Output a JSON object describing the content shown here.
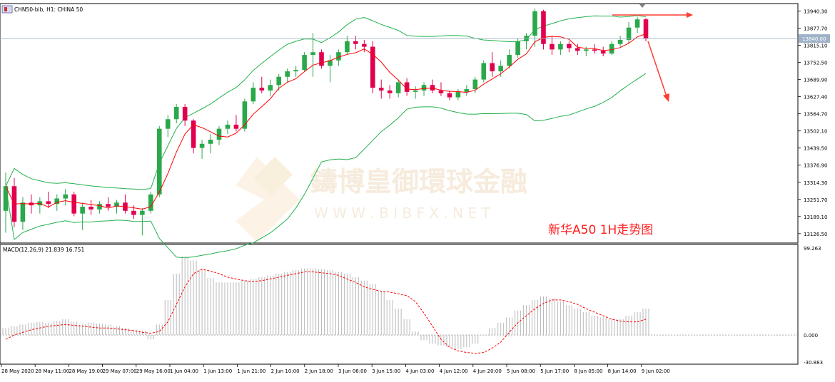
{
  "header": {
    "symbol_label": "CHN50-bib, H1: CHINA 50",
    "macd_label": "MACD(12,26,9) 21.839 16.751"
  },
  "watermark": {
    "name": "鑄博皇御環球金融",
    "url": "W W W . B I B F X . N E T"
  },
  "annotation": {
    "text": "新华A50 1H走势图"
  },
  "colors": {
    "bull": "#26a69a",
    "bear": "#e0004e",
    "candle_up": "#2aa84a",
    "ma": "#ff0000",
    "bands": "#22b14c",
    "arrow": "#ff3b30",
    "macd_hist": "#b9b9b9",
    "macd_signal": "#ff0000",
    "current_line": "#9fb3c8"
  },
  "price_axis": {
    "ticks": [
      "13940.30",
      "13877.70",
      "13815.10",
      "13752.50",
      "13689.90",
      "13627.40",
      "13564.70",
      "13502.10",
      "13439.50",
      "13376.90",
      "13314.30",
      "13251.70",
      "13189.10",
      "13126.50"
    ],
    "current_price": "13840.00"
  },
  "macd_axis": {
    "ticks": [
      "99.263",
      "0.000",
      "-30.883"
    ]
  },
  "time_axis": {
    "labels": [
      "28 May 2020",
      "28 May 11:00",
      "28 May 19:00",
      "29 May 07:00",
      "29 May 16:00",
      "1 Jun 04:00",
      "1 Jun 13:00",
      "1 Jun 21:00",
      "2 Jun 10:00",
      "2 Jun 18:00",
      "3 Jun 06:00",
      "3 Jun 15:00",
      "4 Jun 03:00",
      "4 Jun 12:00",
      "4 Jun 20:00",
      "5 Jun 08:00",
      "5 Jun 17:00",
      "8 Jun 05:00",
      "8 Jun 14:00",
      "9 Jun 02:00"
    ]
  },
  "chart_data": {
    "type": "candlestick",
    "title": "CHN50-bib, H1: CHINA 50",
    "ylim": [
      13100,
      13960
    ],
    "current_price": 13840.0,
    "candles": [
      {
        "t": "28 May 2020",
        "o": 13210,
        "h": 13350,
        "l": 13130,
        "c": 13300
      },
      {
        "t": "",
        "o": 13300,
        "h": 13330,
        "l": 13150,
        "c": 13170
      },
      {
        "t": "",
        "o": 13170,
        "h": 13260,
        "l": 13140,
        "c": 13240
      },
      {
        "t": "",
        "o": 13240,
        "h": 13270,
        "l": 13200,
        "c": 13230
      },
      {
        "t": "28 May 11:00",
        "o": 13230,
        "h": 13260,
        "l": 13200,
        "c": 13245
      },
      {
        "t": "",
        "o": 13245,
        "h": 13280,
        "l": 13220,
        "c": 13235
      },
      {
        "t": "",
        "o": 13235,
        "h": 13270,
        "l": 13210,
        "c": 13255
      },
      {
        "t": "",
        "o": 13255,
        "h": 13290,
        "l": 13230,
        "c": 13270
      },
      {
        "t": "28 May 19:00",
        "o": 13270,
        "h": 13280,
        "l": 13190,
        "c": 13200
      },
      {
        "t": "",
        "o": 13200,
        "h": 13240,
        "l": 13140,
        "c": 13225
      },
      {
        "t": "",
        "o": 13225,
        "h": 13250,
        "l": 13195,
        "c": 13215
      },
      {
        "t": "",
        "o": 13215,
        "h": 13245,
        "l": 13200,
        "c": 13235
      },
      {
        "t": "29 May 07:00",
        "o": 13235,
        "h": 13260,
        "l": 13210,
        "c": 13225
      },
      {
        "t": "",
        "o": 13225,
        "h": 13250,
        "l": 13200,
        "c": 13240
      },
      {
        "t": "",
        "o": 13240,
        "h": 13270,
        "l": 13200,
        "c": 13210
      },
      {
        "t": "",
        "o": 13210,
        "h": 13230,
        "l": 13180,
        "c": 13195
      },
      {
        "t": "29 May 16:00",
        "o": 13195,
        "h": 13220,
        "l": 13120,
        "c": 13210
      },
      {
        "t": "",
        "o": 13210,
        "h": 13280,
        "l": 13200,
        "c": 13270
      },
      {
        "t": "",
        "o": 13270,
        "h": 13520,
        "l": 13260,
        "c": 13510
      },
      {
        "t": "",
        "o": 13510,
        "h": 13560,
        "l": 13480,
        "c": 13545
      },
      {
        "t": "1 Jun 04:00",
        "o": 13545,
        "h": 13600,
        "l": 13530,
        "c": 13590
      },
      {
        "t": "",
        "o": 13590,
        "h": 13600,
        "l": 13520,
        "c": 13540
      },
      {
        "t": "",
        "o": 13540,
        "h": 13545,
        "l": 13420,
        "c": 13440
      },
      {
        "t": "",
        "o": 13440,
        "h": 13470,
        "l": 13400,
        "c": 13455
      },
      {
        "t": "1 Jun 13:00",
        "o": 13455,
        "h": 13490,
        "l": 13420,
        "c": 13470
      },
      {
        "t": "",
        "o": 13470,
        "h": 13520,
        "l": 13450,
        "c": 13510
      },
      {
        "t": "",
        "o": 13510,
        "h": 13540,
        "l": 13490,
        "c": 13525
      },
      {
        "t": "",
        "o": 13525,
        "h": 13560,
        "l": 13500,
        "c": 13510
      },
      {
        "t": "1 Jun 21:00",
        "o": 13510,
        "h": 13620,
        "l": 13500,
        "c": 13610
      },
      {
        "t": "",
        "o": 13610,
        "h": 13680,
        "l": 13600,
        "c": 13660
      },
      {
        "t": "",
        "o": 13660,
        "h": 13700,
        "l": 13640,
        "c": 13650
      },
      {
        "t": "",
        "o": 13650,
        "h": 13690,
        "l": 13630,
        "c": 13670
      },
      {
        "t": "2 Jun 10:00",
        "o": 13670,
        "h": 13710,
        "l": 13650,
        "c": 13700
      },
      {
        "t": "",
        "o": 13700,
        "h": 13730,
        "l": 13680,
        "c": 13720
      },
      {
        "t": "",
        "o": 13720,
        "h": 13740,
        "l": 13700,
        "c": 13725
      },
      {
        "t": "",
        "o": 13725,
        "h": 13790,
        "l": 13720,
        "c": 13780
      },
      {
        "t": "2 Jun 18:00",
        "o": 13780,
        "h": 13860,
        "l": 13700,
        "c": 13790
      },
      {
        "t": "",
        "o": 13790,
        "h": 13800,
        "l": 13730,
        "c": 13740
      },
      {
        "t": "",
        "o": 13740,
        "h": 13780,
        "l": 13680,
        "c": 13760
      },
      {
        "t": "",
        "o": 13760,
        "h": 13800,
        "l": 13740,
        "c": 13790
      },
      {
        "t": "3 Jun 06:00",
        "o": 13790,
        "h": 13850,
        "l": 13780,
        "c": 13830
      },
      {
        "t": "",
        "o": 13830,
        "h": 13850,
        "l": 13800,
        "c": 13820
      },
      {
        "t": "",
        "o": 13820,
        "h": 13835,
        "l": 13790,
        "c": 13810
      },
      {
        "t": "",
        "o": 13810,
        "h": 13830,
        "l": 13640,
        "c": 13660
      },
      {
        "t": "3 Jun 15:00",
        "o": 13660,
        "h": 13690,
        "l": 13620,
        "c": 13650
      },
      {
        "t": "",
        "o": 13650,
        "h": 13670,
        "l": 13620,
        "c": 13640
      },
      {
        "t": "",
        "o": 13640,
        "h": 13690,
        "l": 13625,
        "c": 13680
      },
      {
        "t": "",
        "o": 13680,
        "h": 13695,
        "l": 13630,
        "c": 13645
      },
      {
        "t": "4 Jun 03:00",
        "o": 13645,
        "h": 13665,
        "l": 13620,
        "c": 13650
      },
      {
        "t": "",
        "o": 13650,
        "h": 13680,
        "l": 13630,
        "c": 13670
      },
      {
        "t": "",
        "o": 13670,
        "h": 13690,
        "l": 13640,
        "c": 13650
      },
      {
        "t": "",
        "o": 13650,
        "h": 13680,
        "l": 13630,
        "c": 13640
      },
      {
        "t": "4 Jun 12:00",
        "o": 13640,
        "h": 13650,
        "l": 13615,
        "c": 13625
      },
      {
        "t": "",
        "o": 13625,
        "h": 13655,
        "l": 13615,
        "c": 13645
      },
      {
        "t": "",
        "o": 13645,
        "h": 13670,
        "l": 13630,
        "c": 13655
      },
      {
        "t": "",
        "o": 13655,
        "h": 13700,
        "l": 13640,
        "c": 13690
      },
      {
        "t": "4 Jun 20:00",
        "o": 13690,
        "h": 13760,
        "l": 13680,
        "c": 13750
      },
      {
        "t": "",
        "o": 13750,
        "h": 13790,
        "l": 13700,
        "c": 13720
      },
      {
        "t": "",
        "o": 13720,
        "h": 13760,
        "l": 13700,
        "c": 13740
      },
      {
        "t": "",
        "o": 13740,
        "h": 13800,
        "l": 13730,
        "c": 13780
      },
      {
        "t": "5 Jun 08:00",
        "o": 13780,
        "h": 13840,
        "l": 13770,
        "c": 13830
      },
      {
        "t": "",
        "o": 13830,
        "h": 13860,
        "l": 13800,
        "c": 13850
      },
      {
        "t": "",
        "o": 13850,
        "h": 13950,
        "l": 13810,
        "c": 13940
      },
      {
        "t": "",
        "o": 13940,
        "h": 13945,
        "l": 13800,
        "c": 13820
      },
      {
        "t": "5 Jun 17:00",
        "o": 13820,
        "h": 13850,
        "l": 13780,
        "c": 13800
      },
      {
        "t": "",
        "o": 13800,
        "h": 13830,
        "l": 13780,
        "c": 13820
      },
      {
        "t": "",
        "o": 13820,
        "h": 13830,
        "l": 13790,
        "c": 13805
      },
      {
        "t": "",
        "o": 13805,
        "h": 13820,
        "l": 13780,
        "c": 13795
      },
      {
        "t": "8 Jun 05:00",
        "o": 13795,
        "h": 13810,
        "l": 13775,
        "c": 13800
      },
      {
        "t": "",
        "o": 13800,
        "h": 13820,
        "l": 13785,
        "c": 13795
      },
      {
        "t": "",
        "o": 13795,
        "h": 13810,
        "l": 13775,
        "c": 13785
      },
      {
        "t": "",
        "o": 13785,
        "h": 13830,
        "l": 13780,
        "c": 13820
      },
      {
        "t": "8 Jun 14:00",
        "o": 13820,
        "h": 13850,
        "l": 13810,
        "c": 13835
      },
      {
        "t": "",
        "o": 13835,
        "h": 13900,
        "l": 13820,
        "c": 13880
      },
      {
        "t": "",
        "o": 13880,
        "h": 13920,
        "l": 13860,
        "c": 13910
      },
      {
        "t": "9 Jun 02:00",
        "o": 13910,
        "h": 13915,
        "l": 13830,
        "c": 13840
      }
    ],
    "macd": {
      "ylim": [
        -30.883,
        99.263
      ],
      "histogram": [
        8,
        10,
        12,
        14,
        15,
        14,
        16,
        18,
        15,
        12,
        14,
        13,
        12,
        10,
        8,
        6,
        5,
        -5,
        12,
        40,
        70,
        90,
        85,
        75,
        65,
        60,
        60,
        60,
        62,
        64,
        66,
        68,
        70,
        72,
        74,
        76,
        76,
        75,
        74,
        72,
        70,
        66,
        62,
        58,
        50,
        40,
        30,
        18,
        4,
        -6,
        -10,
        -12,
        -14,
        -16,
        -14,
        -10,
        0,
        8,
        14,
        20,
        28,
        34,
        40,
        44,
        42,
        38,
        34,
        30,
        26,
        22,
        20,
        18,
        18,
        22,
        26,
        30
      ],
      "signal": [
        -5,
        0,
        3,
        6,
        8,
        10,
        11,
        12,
        11,
        10,
        9,
        8,
        8,
        7,
        6,
        5,
        3,
        2,
        4,
        15,
        35,
        55,
        70,
        75,
        73,
        70,
        66,
        64,
        62,
        61,
        62,
        64,
        66,
        68,
        70,
        72,
        72,
        71,
        70,
        68,
        64,
        60,
        55,
        52,
        50,
        49,
        47,
        45,
        38,
        25,
        10,
        -5,
        -14,
        -18,
        -20,
        -21,
        -20,
        -15,
        -8,
        3,
        14,
        22,
        30,
        36,
        40,
        40,
        38,
        35,
        30,
        26,
        22,
        18,
        16,
        15,
        15,
        18
      ]
    }
  }
}
